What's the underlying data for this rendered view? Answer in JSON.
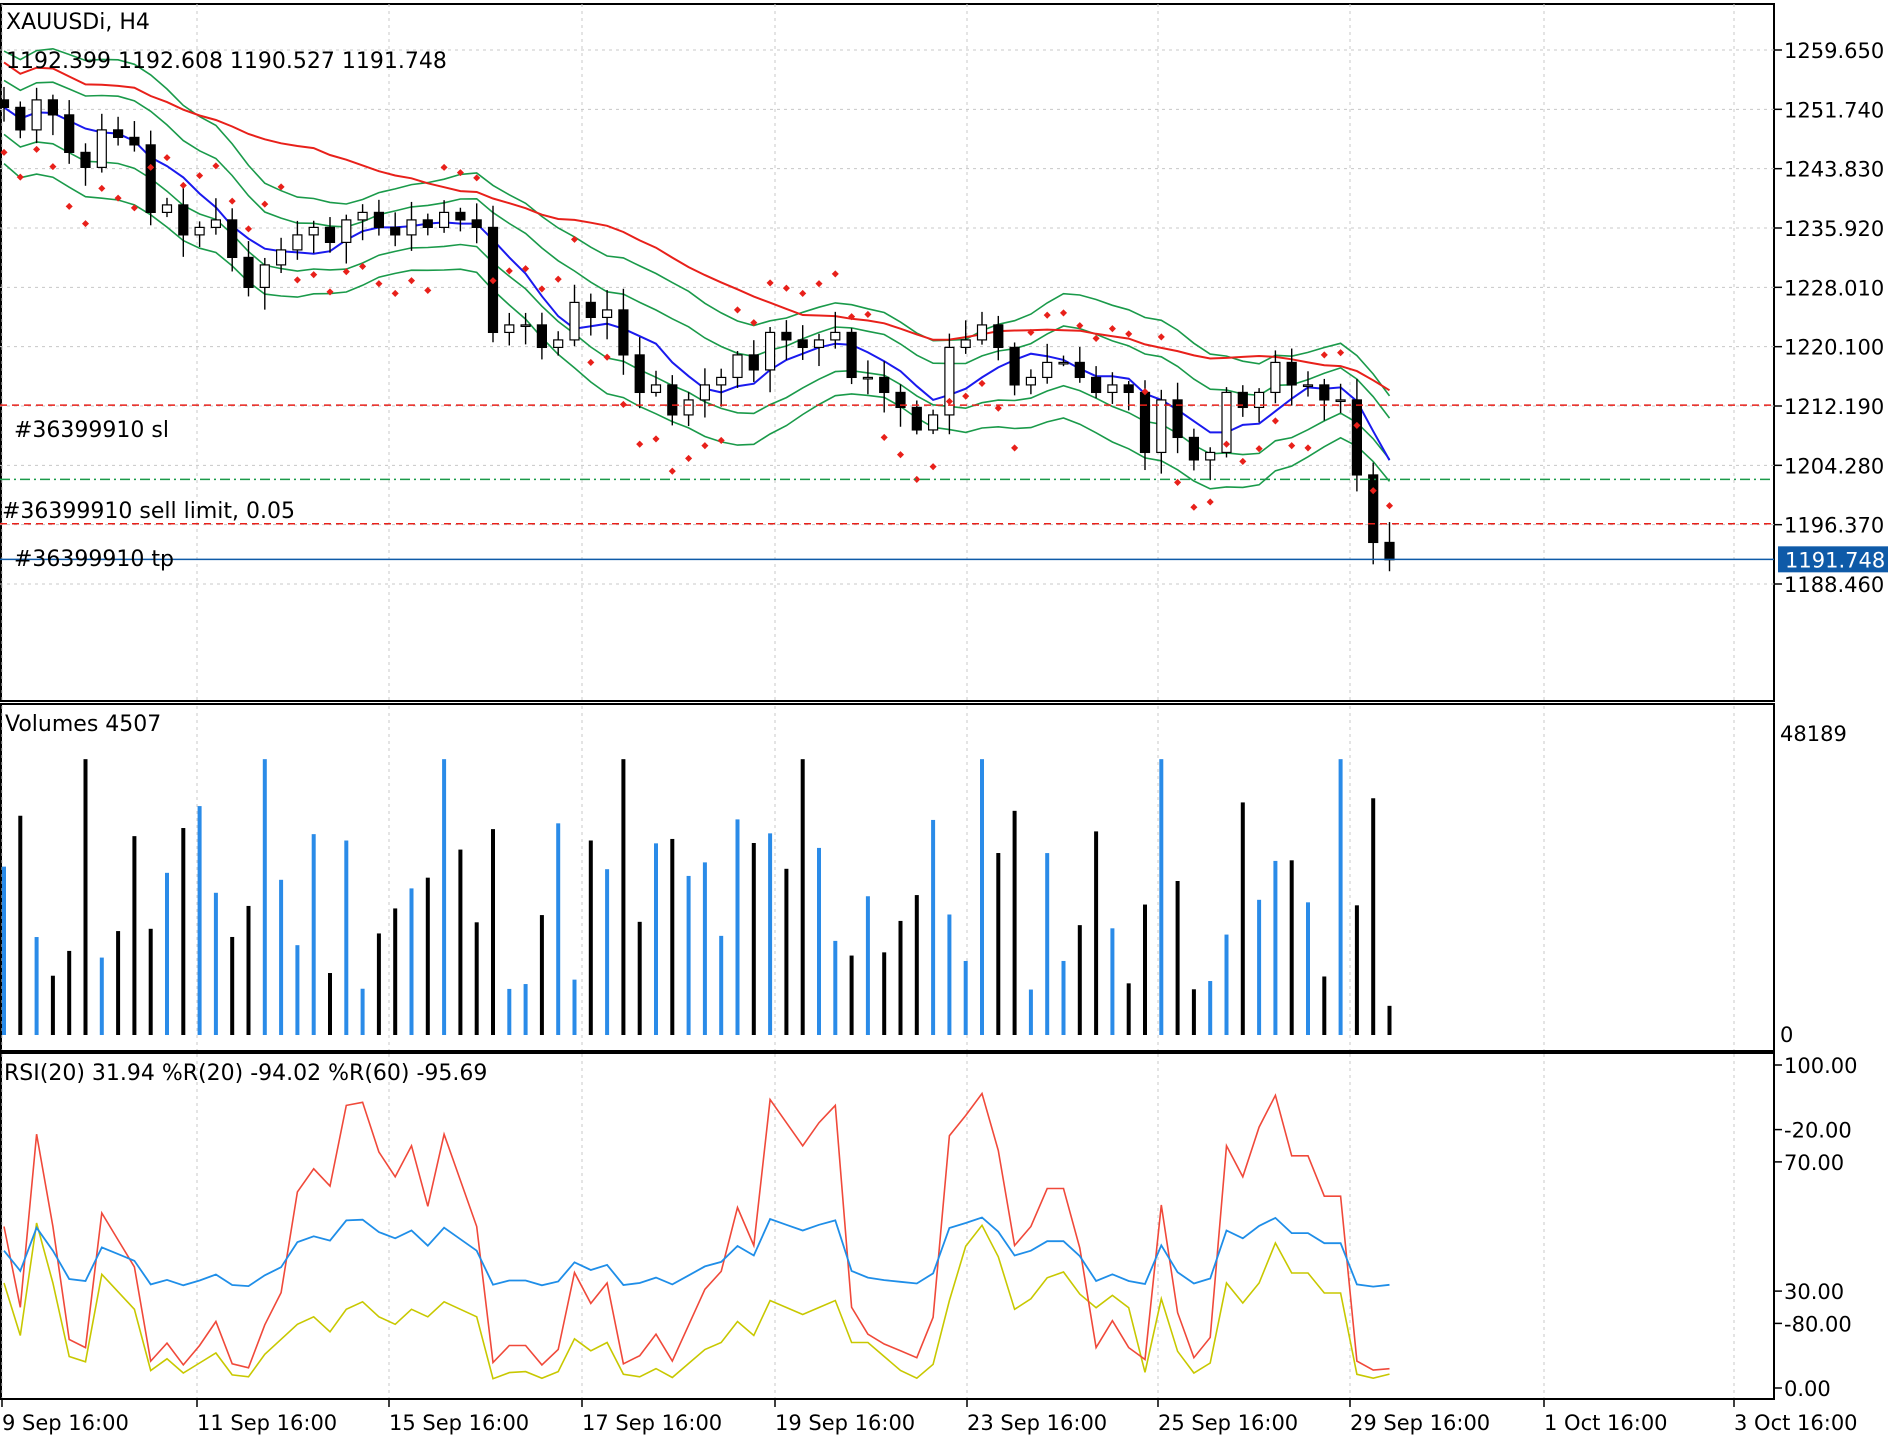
{
  "symbol_title": "XAUUSDi, H4",
  "ohlc_line": "1192.399 1192.608 1190.527 1191.748",
  "current_price": "1191.748",
  "orders": {
    "sl_label": "#36399910 sl",
    "limit_label": "#36399910 sell limit, 0.05",
    "tp_label": "#36399910 tp"
  },
  "volume_title": "Volumes 4507",
  "rsi_title": "RSI(20) 31.94 %R(20) -94.02 %R(60) -95.69",
  "colors": {
    "ma_red": "#e8201a",
    "ma_blue": "#1a1aee",
    "bands_green": "#1a9a4a",
    "sar_red": "#e8201a",
    "order_red": "#e8201a",
    "order_green": "#1a9a4a",
    "vol_up": "#2a8be8",
    "vol_down": "#000000",
    "rsi_blue": "#1f8ee8",
    "wpr20_red": "#f0493a",
    "wpr60_yellow": "#c8c800",
    "price_label_bg": "#0e5aa8"
  },
  "chart_data": [
    {
      "type": "candlestick",
      "name": "XAUUSDi, H4",
      "price_axis_ticks": [
        "1259.650",
        "1251.740",
        "1243.830",
        "1235.920",
        "1228.010",
        "1220.100",
        "1212.190",
        "1204.280",
        "1196.370",
        "1188.460"
      ],
      "ylim": [
        1181.2,
        1266.5
      ],
      "orders": {
        "sl": 1212.3,
        "sell_limit": 1202.4,
        "tp": 1196.5
      },
      "close_sample": [
        1252,
        1249,
        1253,
        1251,
        1246,
        1244,
        1249,
        1248,
        1247,
        1238,
        1239,
        1235,
        1236,
        1237,
        1232,
        1228,
        1231,
        1233,
        1235,
        1236,
        1234,
        1237,
        1238,
        1236,
        1235,
        1237,
        1236,
        1238,
        1237,
        1236,
        1222,
        1223,
        1223,
        1220,
        1221,
        1226,
        1224,
        1225,
        1219,
        1214,
        1215,
        1211,
        1213,
        1215,
        1216,
        1219,
        1217,
        1222,
        1221,
        1220,
        1221,
        1222,
        1216,
        1216,
        1214,
        1212,
        1209,
        1211,
        1220,
        1221,
        1223,
        1220,
        1215,
        1216,
        1218,
        1218,
        1216,
        1214,
        1215,
        1214,
        1206,
        1213,
        1208,
        1205,
        1206,
        1214,
        1212,
        1214,
        1218,
        1215,
        1215,
        1213,
        1213,
        1203,
        1194,
        1191.7
      ]
    },
    {
      "type": "bar",
      "name": "Volumes",
      "value_axis_ticks": [
        "48189",
        "0"
      ],
      "ylim": [
        0,
        48189
      ],
      "last_value": 4507
    },
    {
      "type": "line",
      "name": "RSI(20) %R(20) %R(60)",
      "left_axis_ticks": [
        "100.00",
        "70.00",
        "30.00",
        "0.00"
      ],
      "wpr_axis_ticks": [
        "-20.00",
        "-80.00"
      ],
      "rsi_last": 31.94,
      "wpr20_last": -94.02,
      "wpr60_last": -95.69
    }
  ],
  "time_axis_labels": [
    "9 Sep 16:00",
    "11 Sep 16:00",
    "15 Sep 16:00",
    "17 Sep 16:00",
    "19 Sep 16:00",
    "23 Sep 16:00",
    "25 Sep 16:00",
    "29 Sep 16:00",
    "1 Oct 16:00",
    "3 Oct 16:00"
  ]
}
